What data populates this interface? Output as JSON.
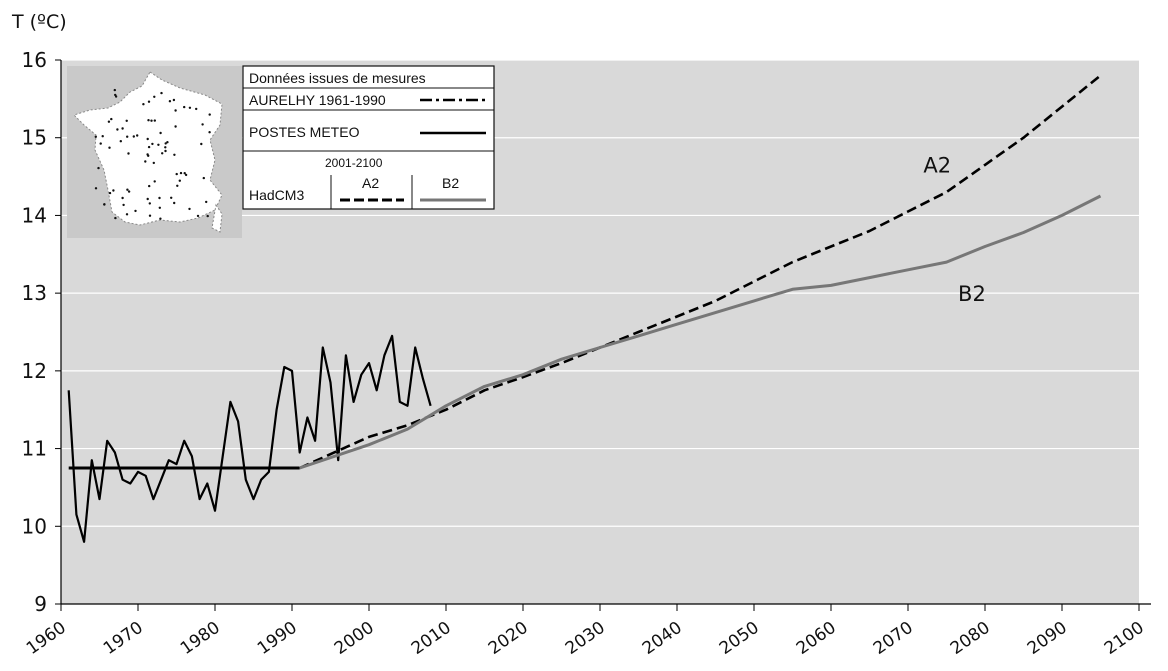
{
  "chart_data": {
    "type": "line",
    "ylabel": "T (ºC)",
    "xlabel": "",
    "xlim": [
      1960,
      2100
    ],
    "ylim": [
      9,
      16
    ],
    "x_ticks": [
      1960,
      1970,
      1980,
      1990,
      2000,
      2010,
      2020,
      2030,
      2040,
      2050,
      2060,
      2070,
      2080,
      2090,
      2100
    ],
    "y_ticks": [
      9,
      10,
      11,
      12,
      13,
      14,
      15,
      16
    ],
    "grid": "horizontal",
    "background_color": "#d9d9d9",
    "legend": {
      "placement": "top-left",
      "heading": "Données issues de mesures",
      "aurelhy_label": "AURELHY 1961-1990",
      "postes_label": "POSTES METEO",
      "period_label": "2001-2100",
      "model_label": "HadCM3",
      "a2_label": "A2",
      "b2_label": "B2",
      "has_france_map": true
    },
    "series": [
      {
        "name": "POSTES METEO",
        "style": "solid-black",
        "color": "#000000",
        "x": [
          1961,
          1962,
          1963,
          1964,
          1965,
          1966,
          1967,
          1968,
          1969,
          1970,
          1971,
          1972,
          1973,
          1974,
          1975,
          1976,
          1977,
          1978,
          1979,
          1980,
          1981,
          1982,
          1983,
          1984,
          1985,
          1986,
          1987,
          1988,
          1989,
          1990,
          1991,
          1992,
          1993,
          1994,
          1995,
          1996,
          1997,
          1998,
          1999,
          2000,
          2001,
          2002,
          2003,
          2004,
          2005,
          2006,
          2007,
          2008
        ],
        "y": [
          11.75,
          10.15,
          9.8,
          10.85,
          10.35,
          11.1,
          10.95,
          10.6,
          10.55,
          10.7,
          10.65,
          10.35,
          10.6,
          10.85,
          10.8,
          11.1,
          10.9,
          10.35,
          10.55,
          10.2,
          10.9,
          11.6,
          11.35,
          10.6,
          10.35,
          10.6,
          10.7,
          11.5,
          12.05,
          12.0,
          10.95,
          11.4,
          11.1,
          12.3,
          11.85,
          10.85,
          12.2,
          11.6,
          11.95,
          12.1,
          11.75,
          12.2,
          12.45,
          11.6,
          11.55,
          12.3,
          11.9,
          11.55
        ]
      },
      {
        "name": "AURELHY 1961-1990",
        "style": "dash-dot",
        "color": "#000000",
        "x": [
          1961,
          1991
        ],
        "y": [
          10.75,
          10.75
        ]
      },
      {
        "name": "A2",
        "style": "dashed-black",
        "color": "#000000",
        "x": [
          1991,
          2000,
          2005,
          2010,
          2015,
          2020,
          2025,
          2030,
          2035,
          2040,
          2045,
          2050,
          2055,
          2060,
          2065,
          2070,
          2075,
          2080,
          2085,
          2090,
          2095
        ],
        "y": [
          10.75,
          11.15,
          11.3,
          11.5,
          11.75,
          11.92,
          12.1,
          12.3,
          12.5,
          12.7,
          12.9,
          13.15,
          13.4,
          13.6,
          13.8,
          14.05,
          14.3,
          14.65,
          15.0,
          15.4,
          15.8
        ]
      },
      {
        "name": "B2",
        "style": "solid-gray",
        "color": "#777777",
        "x": [
          1991,
          2000,
          2005,
          2010,
          2015,
          2020,
          2025,
          2030,
          2035,
          2040,
          2045,
          2050,
          2055,
          2060,
          2065,
          2070,
          2075,
          2080,
          2085,
          2090,
          2095
        ],
        "y": [
          10.75,
          11.05,
          11.25,
          11.55,
          11.8,
          11.95,
          12.15,
          12.3,
          12.45,
          12.6,
          12.75,
          12.9,
          13.05,
          13.1,
          13.2,
          13.3,
          13.4,
          13.6,
          13.78,
          14.0,
          14.25
        ]
      }
    ],
    "annotations": [
      {
        "text": "A2",
        "x": 2072,
        "y": 14.55
      },
      {
        "text": "B2",
        "x": 2076.5,
        "y": 12.9
      }
    ]
  }
}
